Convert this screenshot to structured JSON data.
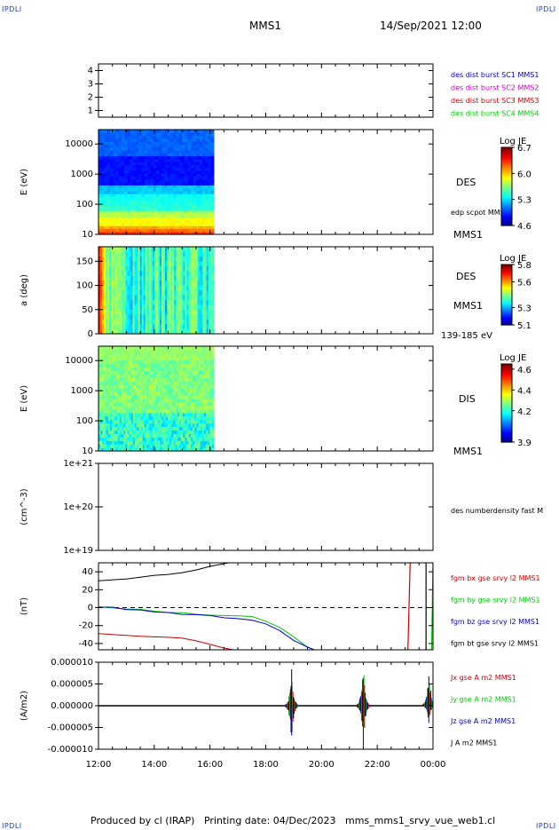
{
  "corner_label": "IPDLI",
  "header": {
    "title": "MMS1",
    "date": "14/Sep/2021 12:00"
  },
  "footer": {
    "produced_by": "Produced by cl (IRAP)",
    "printing_date": "Printing date: 04/Dec/2023",
    "file": "mms_mms1_srvy_vue_web1.cl"
  },
  "colors": {
    "mms1": "#0000cc",
    "mms2": "#cc00cc",
    "mms3": "#cc0000",
    "mms4": "#00cc00",
    "bt": "#000000"
  },
  "time_axis": {
    "ticks": [
      "12:00",
      "14:00",
      "16:00",
      "18:00",
      "20:00",
      "22:00",
      "00:00"
    ]
  },
  "chart_data": [
    {
      "type": "line",
      "panel": "sc-coverage",
      "ylabel": "",
      "ylim": [
        0.5,
        4.5
      ],
      "yticks": [
        "4",
        "3",
        "2",
        "1"
      ],
      "legend": [
        {
          "text": "des dist burst SC1 MMS1",
          "color": "#0000cc"
        },
        {
          "text": "des dist burst SC2 MMS2",
          "color": "#cc00cc"
        },
        {
          "text": "des dist burst SC3 MMS3",
          "color": "#cc0000"
        },
        {
          "text": "des dist burst SC4 MMS4",
          "color": "#00cc00"
        }
      ]
    },
    {
      "type": "heatmap",
      "panel": "des-energy",
      "ylabel": "E (eV)",
      "yscale": "log",
      "ylim": [
        10,
        30000
      ],
      "yticks": [
        "10000",
        "1000",
        "100",
        "10"
      ],
      "time_range": [
        "12:00",
        "16:08"
      ],
      "side_labels": [
        "DES",
        "edp scpot MMS1",
        "MMS1"
      ],
      "colorbar": {
        "title": "Log JE",
        "ticks": [
          "6.7",
          "6.0",
          "5.3",
          "4.6"
        ],
        "range": [
          4.6,
          6.7
        ]
      }
    },
    {
      "type": "heatmap",
      "panel": "des-pitch",
      "ylabel": "a (deg)",
      "ylim": [
        0,
        180
      ],
      "yticks": [
        "150",
        "100",
        "50",
        "0"
      ],
      "time_range": [
        "12:00",
        "16:08"
      ],
      "side_labels": [
        "DES",
        "MMS1",
        "139-185 eV"
      ],
      "colorbar": {
        "title": "Log JE",
        "ticks": [
          "5.8",
          "5.6",
          "5.3",
          "5.1"
        ],
        "range": [
          5.1,
          5.8
        ]
      }
    },
    {
      "type": "heatmap",
      "panel": "dis-energy",
      "ylabel": "E (eV)",
      "yscale": "log",
      "ylim": [
        10,
        30000
      ],
      "yticks": [
        "10000",
        "1000",
        "100",
        "10"
      ],
      "time_range": [
        "12:00",
        "16:08"
      ],
      "side_labels": [
        "DIS",
        "MMS1"
      ],
      "colorbar": {
        "title": "Log JE",
        "ticks": [
          "4.6",
          "4.4",
          "4.2",
          "3.9"
        ],
        "range": [
          3.9,
          4.65
        ]
      }
    },
    {
      "type": "line",
      "panel": "density",
      "ylabel": "(cm^-3)",
      "yscale": "log",
      "yticks": [
        "1e+21",
        "1e+20",
        "1e+19"
      ],
      "legend": [
        {
          "text": "des numberdensity fast M",
          "color": "#000000"
        }
      ]
    },
    {
      "type": "line",
      "panel": "magnetic-field",
      "ylabel": "(nT)",
      "ylim": [
        -47,
        50
      ],
      "yticks": [
        "40",
        "20",
        "0",
        "-20",
        "-40"
      ],
      "legend": [
        {
          "text": "fgm bx gse srvy l2 MMS1",
          "color": "#cc0000"
        },
        {
          "text": "fgm by gse srvy l2 MMS1",
          "color": "#00cc00"
        },
        {
          "text": "fgm bz gse srvy l2 MMS1",
          "color": "#0000cc"
        },
        {
          "text": "fgm bt gse srvy l2 MMS1",
          "color": "#000000"
        }
      ],
      "x_hours": [
        12,
        12.5,
        13,
        13.5,
        14,
        14.5,
        15,
        15.5,
        16,
        16.5,
        17,
        17.5,
        18,
        18.5,
        19,
        19.5,
        20
      ],
      "series": [
        {
          "key": "bt",
          "values": [
            30,
            31,
            32,
            34,
            36,
            37,
            39,
            42,
            46,
            49,
            52
          ]
        },
        {
          "key": "bx",
          "values": [
            -29,
            -30,
            -31,
            -32,
            -32.5,
            -33,
            -34,
            -37,
            -41,
            -45,
            -48
          ]
        },
        {
          "key": "by",
          "values": [
            1,
            0,
            -1.5,
            -2.5,
            -4,
            -5,
            -6,
            -7,
            -8,
            -9,
            -9.5,
            -10,
            -15,
            -22,
            -33,
            -44,
            -50
          ]
        },
        {
          "key": "bz",
          "values": [
            1,
            0,
            -2,
            -3,
            -5,
            -6,
            -7,
            -8,
            -9,
            -11,
            -12,
            -14,
            -18,
            -26,
            -36,
            -44,
            -50
          ]
        }
      ],
      "late_traces": [
        {
          "key": "bx",
          "x": [
            23.1,
            23.18
          ],
          "y": [
            -47,
            50
          ]
        },
        {
          "key": "by",
          "x": [
            23.95,
            24.0
          ],
          "y": [
            -47,
            50
          ]
        },
        {
          "key": "bt",
          "x": [
            24.35,
            24.35
          ],
          "y": [
            -47,
            50
          ]
        },
        {
          "key": "bz",
          "x": [
            24.62,
            24.66
          ],
          "y": [
            -47,
            50
          ]
        },
        {
          "key": "bt",
          "x": [
            23.75,
            23.75
          ],
          "y": [
            -47,
            50
          ]
        },
        {
          "key": "by",
          "x": [
            24.22,
            24.22
          ],
          "y": [
            -47,
            50
          ]
        },
        {
          "key": "bz",
          "x": [
            25.85,
            25.9
          ],
          "y": [
            -47,
            50
          ]
        }
      ]
    },
    {
      "type": "line",
      "panel": "current-density",
      "ylabel": "(A/m2)",
      "ylim": [
        -1e-05,
        1e-05
      ],
      "yticks": [
        "0.000010",
        "0.000005",
        "0.000000",
        "-0.000005",
        "-0.000010"
      ],
      "legend": [
        {
          "text": "Jx gse A m2 MMS1",
          "color": "#cc0000"
        },
        {
          "text": "Jy gse A m2 MMS1",
          "color": "#00cc00"
        },
        {
          "text": "Jz gse A m2 MMS1",
          "color": "#0000cc"
        },
        {
          "text": "J A m2 MMS1",
          "color": "#000000"
        }
      ],
      "spikes": [
        {
          "x": 18.93,
          "up": 8.5e-06,
          "down": -9.5e-06
        },
        {
          "x": 21.5,
          "up": 1e-05,
          "down": -1e-05
        },
        {
          "x": 23.85,
          "up": 9.5e-06,
          "down": -4e-06
        }
      ]
    }
  ]
}
